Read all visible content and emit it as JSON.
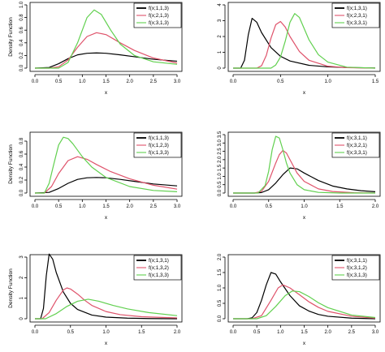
{
  "chart_data": [
    {
      "type": "line",
      "xlabel": "x",
      "ylabel": "Density Function",
      "xlim": [
        0.0,
        3.0
      ],
      "ylim": [
        0.0,
        1.0
      ],
      "x_ticks": [
        "0.0",
        "0.5",
        "1.0",
        "1.5",
        "2.0",
        "2.5",
        "3.0"
      ],
      "y_ticks": [
        "0.0",
        "0.2",
        "0.4",
        "0.6",
        "0.8",
        "1.0"
      ],
      "legend_position": "top-right",
      "series": [
        {
          "name": "f(x;1,1,3)",
          "color": "#000000",
          "x": [
            0.0,
            0.3,
            0.5,
            0.7,
            0.9,
            1.1,
            1.3,
            1.5,
            1.8,
            2.1,
            2.5,
            3.0
          ],
          "y": [
            0.0,
            0.01,
            0.07,
            0.15,
            0.21,
            0.235,
            0.24,
            0.235,
            0.21,
            0.18,
            0.14,
            0.11
          ]
        },
        {
          "name": "f(x;2,1,3)",
          "color": "#df536b",
          "x": [
            0.0,
            0.3,
            0.5,
            0.7,
            0.9,
            1.1,
            1.3,
            1.5,
            1.8,
            2.1,
            2.5,
            3.0
          ],
          "y": [
            0.0,
            0.0,
            0.02,
            0.13,
            0.33,
            0.5,
            0.56,
            0.53,
            0.4,
            0.28,
            0.16,
            0.08
          ]
        },
        {
          "name": "f(x;3,1,3)",
          "color": "#61d04f",
          "x": [
            0.0,
            0.3,
            0.5,
            0.7,
            0.9,
            1.1,
            1.25,
            1.4,
            1.6,
            1.8,
            2.1,
            2.5,
            3.0
          ],
          "y": [
            0.0,
            0.0,
            0.0,
            0.09,
            0.4,
            0.8,
            0.92,
            0.85,
            0.6,
            0.38,
            0.2,
            0.1,
            0.06
          ]
        }
      ]
    },
    {
      "type": "line",
      "xlabel": "x",
      "ylabel": "",
      "xlim": [
        0.0,
        1.5
      ],
      "ylim": [
        0,
        4
      ],
      "x_ticks": [
        "0.0",
        "0.5",
        "1.0",
        "1.5"
      ],
      "y_ticks": [
        "0",
        "1",
        "2",
        "3",
        "4"
      ],
      "legend_position": "top-right",
      "series": [
        {
          "name": "f(x;1,3,1)",
          "color": "#000000",
          "x": [
            0.0,
            0.08,
            0.12,
            0.16,
            0.2,
            0.25,
            0.3,
            0.4,
            0.5,
            0.6,
            0.8,
            1.0,
            1.2,
            1.5
          ],
          "y": [
            0.0,
            0.0,
            0.5,
            2.1,
            3.15,
            2.9,
            2.25,
            1.3,
            0.75,
            0.45,
            0.18,
            0.08,
            0.04,
            0.01
          ]
        },
        {
          "name": "f(x;2,3,1)",
          "color": "#df536b",
          "x": [
            0.0,
            0.25,
            0.3,
            0.35,
            0.4,
            0.45,
            0.5,
            0.55,
            0.6,
            0.7,
            0.8,
            1.0,
            1.2,
            1.5
          ],
          "y": [
            0.0,
            0.0,
            0.15,
            0.8,
            1.9,
            2.75,
            2.95,
            2.6,
            2.0,
            1.05,
            0.5,
            0.12,
            0.03,
            0.0
          ]
        },
        {
          "name": "f(x;3,3,1)",
          "color": "#61d04f",
          "x": [
            0.0,
            0.4,
            0.45,
            0.5,
            0.55,
            0.6,
            0.65,
            0.7,
            0.75,
            0.8,
            0.9,
            1.0,
            1.2,
            1.5
          ],
          "y": [
            0.0,
            0.0,
            0.2,
            0.7,
            1.7,
            2.9,
            3.45,
            3.2,
            2.5,
            1.8,
            0.85,
            0.38,
            0.06,
            0.0
          ]
        }
      ]
    },
    {
      "type": "line",
      "xlabel": "x",
      "ylabel": "Density Function",
      "xlim": [
        0.0,
        3.0
      ],
      "ylim": [
        0.0,
        0.9
      ],
      "x_ticks": [
        "0.0",
        "0.5",
        "1.0",
        "1.5",
        "2.0",
        "2.5",
        "3.0"
      ],
      "y_ticks": [
        "0.0",
        "0.2",
        "0.4",
        "0.6",
        "0.8"
      ],
      "legend_position": "top-right",
      "series": [
        {
          "name": "f(x;1,1,3)",
          "color": "#000000",
          "x": [
            0.0,
            0.3,
            0.5,
            0.7,
            0.9,
            1.1,
            1.3,
            1.5,
            1.8,
            2.1,
            2.5,
            3.0
          ],
          "y": [
            0.0,
            0.01,
            0.07,
            0.15,
            0.21,
            0.235,
            0.24,
            0.235,
            0.21,
            0.18,
            0.14,
            0.11
          ]
        },
        {
          "name": "f(x;1,2,3)",
          "color": "#df536b",
          "x": [
            0.0,
            0.2,
            0.35,
            0.5,
            0.7,
            0.9,
            1.1,
            1.3,
            1.6,
            2.0,
            2.5,
            3.0
          ],
          "y": [
            0.0,
            0.0,
            0.1,
            0.3,
            0.5,
            0.56,
            0.52,
            0.44,
            0.33,
            0.22,
            0.12,
            0.06
          ]
        },
        {
          "name": "f(x;1,3,3)",
          "color": "#61d04f",
          "x": [
            0.0,
            0.2,
            0.3,
            0.4,
            0.5,
            0.6,
            0.7,
            0.8,
            1.0,
            1.2,
            1.5,
            2.0,
            2.5,
            3.0
          ],
          "y": [
            0.0,
            0.0,
            0.15,
            0.45,
            0.74,
            0.86,
            0.84,
            0.76,
            0.56,
            0.4,
            0.24,
            0.1,
            0.04,
            0.02
          ]
        }
      ]
    },
    {
      "type": "line",
      "xlabel": "x",
      "ylabel": "",
      "xlim": [
        0.0,
        2.0
      ],
      "ylim": [
        0.0,
        3.5
      ],
      "x_ticks": [
        "0.0",
        "0.5",
        "1.0",
        "1.5",
        "2.0"
      ],
      "y_ticks": [
        "0.0",
        "0.5",
        "1.0",
        "1.5",
        "2.0",
        "2.5",
        "3.0",
        "3.5"
      ],
      "legend_position": "top-right",
      "series": [
        {
          "name": "f(x;3,1,1)",
          "color": "#000000",
          "x": [
            0.0,
            0.3,
            0.4,
            0.5,
            0.6,
            0.7,
            0.8,
            0.9,
            1.0,
            1.2,
            1.4,
            1.6,
            1.8,
            2.0
          ],
          "y": [
            0.0,
            0.0,
            0.03,
            0.2,
            0.6,
            1.1,
            1.5,
            1.45,
            1.2,
            0.75,
            0.42,
            0.25,
            0.14,
            0.08
          ]
        },
        {
          "name": "f(x;3,2,1)",
          "color": "#df536b",
          "x": [
            0.0,
            0.3,
            0.4,
            0.5,
            0.6,
            0.65,
            0.7,
            0.75,
            0.8,
            0.9,
            1.0,
            1.2,
            1.4,
            1.7,
            2.0
          ],
          "y": [
            0.0,
            0.0,
            0.1,
            0.7,
            1.8,
            2.3,
            2.55,
            2.4,
            2.0,
            1.2,
            0.7,
            0.25,
            0.09,
            0.02,
            0.0
          ]
        },
        {
          "name": "f(x;3,3,1)",
          "color": "#61d04f",
          "x": [
            0.0,
            0.35,
            0.45,
            0.5,
            0.55,
            0.6,
            0.65,
            0.7,
            0.75,
            0.8,
            0.9,
            1.0,
            1.2,
            1.5,
            2.0
          ],
          "y": [
            0.0,
            0.0,
            0.45,
            1.3,
            2.6,
            3.4,
            3.3,
            2.6,
            1.8,
            1.2,
            0.5,
            0.2,
            0.04,
            0.0,
            0.0
          ]
        }
      ]
    },
    {
      "type": "line",
      "xlabel": "x",
      "ylabel": "Density Function",
      "xlim": [
        0.0,
        2.0
      ],
      "ylim": [
        0,
        3
      ],
      "x_ticks": [
        "0.0",
        "0.5",
        "1.0",
        "1.5",
        "2.0"
      ],
      "y_ticks": [
        "0",
        "1",
        "2",
        "3"
      ],
      "legend_position": "top-right",
      "series": [
        {
          "name": "f(x;1,3,1)",
          "color": "#000000",
          "x": [
            0.0,
            0.08,
            0.12,
            0.16,
            0.2,
            0.25,
            0.3,
            0.4,
            0.5,
            0.6,
            0.8,
            1.0,
            1.3,
            1.6,
            2.0
          ],
          "y": [
            0.0,
            0.0,
            0.5,
            2.1,
            3.15,
            2.9,
            2.25,
            1.3,
            0.75,
            0.45,
            0.18,
            0.08,
            0.03,
            0.01,
            0.0
          ]
        },
        {
          "name": "f(x;1,3,2)",
          "color": "#df536b",
          "x": [
            0.0,
            0.1,
            0.2,
            0.3,
            0.4,
            0.45,
            0.5,
            0.6,
            0.7,
            0.8,
            1.0,
            1.2,
            1.5,
            2.0
          ],
          "y": [
            0.0,
            0.0,
            0.3,
            0.9,
            1.4,
            1.5,
            1.45,
            1.2,
            0.9,
            0.65,
            0.35,
            0.2,
            0.1,
            0.04
          ]
        },
        {
          "name": "f(x;1,3,3)",
          "color": "#61d04f",
          "x": [
            0.0,
            0.15,
            0.3,
            0.45,
            0.6,
            0.75,
            0.9,
            1.1,
            1.3,
            1.6,
            2.0
          ],
          "y": [
            0.0,
            0.0,
            0.25,
            0.6,
            0.85,
            0.95,
            0.85,
            0.65,
            0.48,
            0.3,
            0.15
          ]
        }
      ]
    },
    {
      "type": "line",
      "xlabel": "x",
      "ylabel": "",
      "xlim": [
        0.0,
        3.0
      ],
      "ylim": [
        0.0,
        2.0
      ],
      "x_ticks": [
        "0.0",
        "0.5",
        "1.0",
        "1.5",
        "2.0",
        "2.5",
        "3.0"
      ],
      "y_ticks": [
        "0.0",
        "0.5",
        "1.0",
        "1.5",
        "2.0"
      ],
      "legend_position": "top-right",
      "series": [
        {
          "name": "f(x;3,1,1)",
          "color": "#000000",
          "x": [
            0.0,
            0.3,
            0.4,
            0.5,
            0.6,
            0.7,
            0.8,
            0.9,
            1.0,
            1.2,
            1.4,
            1.6,
            1.8,
            2.0,
            2.5,
            3.0
          ],
          "y": [
            0.0,
            0.0,
            0.03,
            0.2,
            0.6,
            1.1,
            1.5,
            1.45,
            1.2,
            0.75,
            0.42,
            0.25,
            0.14,
            0.08,
            0.02,
            0.0
          ]
        },
        {
          "name": "f(x;3,1,2)",
          "color": "#df536b",
          "x": [
            0.0,
            0.4,
            0.6,
            0.8,
            0.95,
            1.05,
            1.2,
            1.4,
            1.6,
            1.8,
            2.0,
            2.5,
            3.0
          ],
          "y": [
            0.0,
            0.0,
            0.1,
            0.6,
            1.0,
            1.1,
            1.0,
            0.78,
            0.55,
            0.37,
            0.24,
            0.08,
            0.02
          ]
        },
        {
          "name": "f(x;3,1,3)",
          "color": "#61d04f",
          "x": [
            0.0,
            0.5,
            0.7,
            0.9,
            1.1,
            1.25,
            1.4,
            1.6,
            1.8,
            2.0,
            2.5,
            3.0
          ],
          "y": [
            0.0,
            0.0,
            0.1,
            0.4,
            0.75,
            0.9,
            0.88,
            0.72,
            0.52,
            0.36,
            0.12,
            0.04
          ]
        }
      ]
    }
  ]
}
